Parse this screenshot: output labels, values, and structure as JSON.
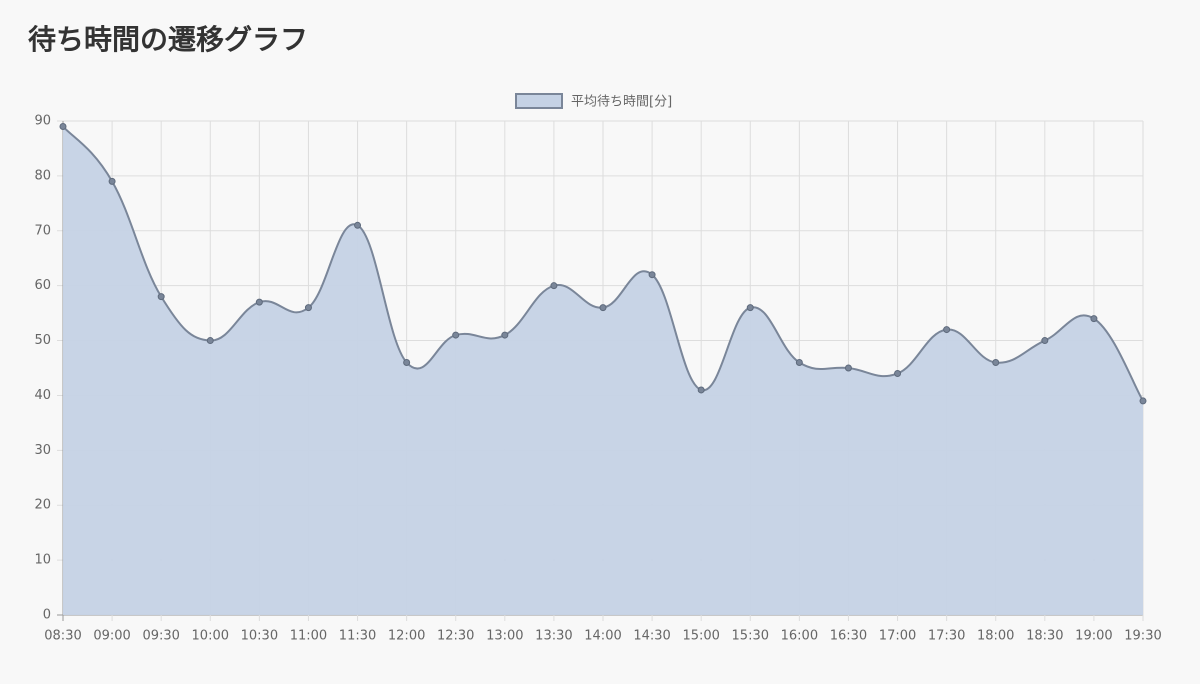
{
  "title": "待ち時間の遷移グラフ",
  "chart_data": {
    "type": "area",
    "categories": [
      "08:30",
      "09:00",
      "09:30",
      "10:00",
      "10:30",
      "11:00",
      "11:30",
      "12:00",
      "12:30",
      "13:00",
      "13:30",
      "14:00",
      "14:30",
      "15:00",
      "15:30",
      "16:00",
      "16:30",
      "17:00",
      "17:30",
      "18:00",
      "18:30",
      "19:00",
      "19:30"
    ],
    "series": [
      {
        "name": "平均待ち時間[分]",
        "color": "#7a8699",
        "fill": "#c5d2e5",
        "values": [
          89,
          79,
          58,
          50,
          57,
          56,
          71,
          46,
          51,
          51,
          60,
          56,
          62,
          41,
          56,
          46,
          45,
          44,
          52,
          46,
          50,
          54,
          39
        ]
      }
    ],
    "ylim": [
      0,
      90
    ],
    "yticks": [
      0,
      10,
      20,
      30,
      40,
      50,
      60,
      70,
      80,
      90
    ],
    "grid": true,
    "legend": "top"
  }
}
